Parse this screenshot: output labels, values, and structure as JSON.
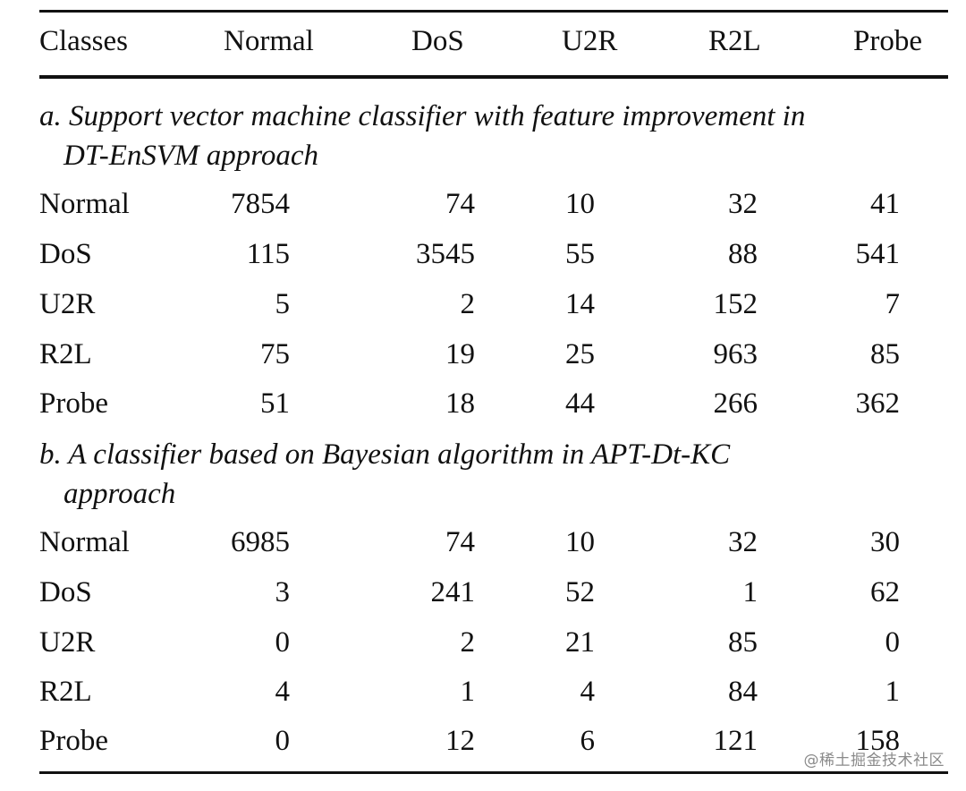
{
  "columns": [
    "Classes",
    "Normal",
    "DoS",
    "U2R",
    "R2L",
    "Probe"
  ],
  "sections": [
    {
      "title_line1": "a. Support vector machine classifier with feature improvement in",
      "title_line2": "DT-EnSVM approach",
      "rows": [
        {
          "label": "Normal",
          "values": [
            "7854",
            "74",
            "10",
            "32",
            "41"
          ]
        },
        {
          "label": "DoS",
          "values": [
            "115",
            "3545",
            "55",
            "88",
            "541"
          ]
        },
        {
          "label": "U2R",
          "values": [
            "5",
            "2",
            "14",
            "152",
            "7"
          ]
        },
        {
          "label": "R2L",
          "values": [
            "75",
            "19",
            "25",
            "963",
            "85"
          ]
        },
        {
          "label": "Probe",
          "values": [
            "51",
            "18",
            "44",
            "266",
            "362"
          ]
        }
      ]
    },
    {
      "title_line1": "b. A classifier based on Bayesian algorithm in APT-Dt-KC",
      "title_line2": "approach",
      "rows": [
        {
          "label": "Normal",
          "values": [
            "6985",
            "74",
            "10",
            "32",
            "30"
          ]
        },
        {
          "label": "DoS",
          "values": [
            "3",
            "241",
            "52",
            "1",
            "62"
          ]
        },
        {
          "label": "U2R",
          "values": [
            "0",
            "2",
            "21",
            "85",
            "0"
          ]
        },
        {
          "label": "R2L",
          "values": [
            "4",
            "1",
            "4",
            "84",
            "1"
          ]
        },
        {
          "label": "Probe",
          "values": [
            "0",
            "12",
            "6",
            "121",
            "158"
          ]
        }
      ]
    }
  ],
  "watermark": "@稀土掘金技术社区"
}
